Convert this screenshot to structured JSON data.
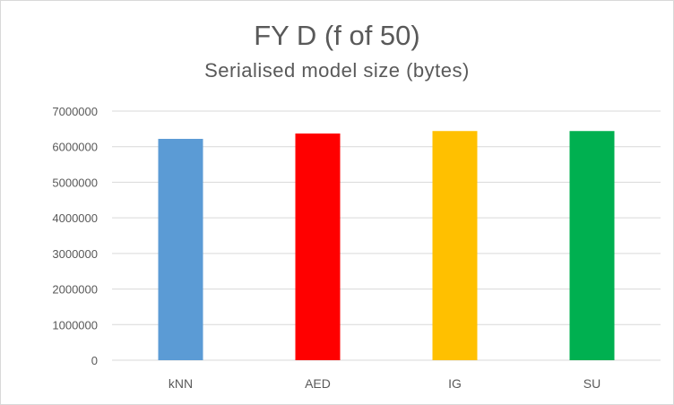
{
  "chart_data": {
    "type": "bar",
    "title": "FY D (f of 50)",
    "subtitle": "Serialised model size (bytes)",
    "categories": [
      "kNN",
      "AED",
      "IG",
      "SU"
    ],
    "values": [
      6220000,
      6370000,
      6440000,
      6440000
    ],
    "colors": [
      "#5b9bd5",
      "#ff0000",
      "#ffc000",
      "#00b050"
    ],
    "ylim": [
      0,
      7000000
    ],
    "yticks": [
      0,
      1000000,
      2000000,
      3000000,
      4000000,
      5000000,
      6000000,
      7000000
    ],
    "ytick_labels": [
      "0",
      "1000000",
      "2000000",
      "3000000",
      "4000000",
      "5000000",
      "6000000",
      "7000000"
    ],
    "xlabel": "",
    "ylabel": "",
    "grid": true,
    "legend": "none"
  }
}
